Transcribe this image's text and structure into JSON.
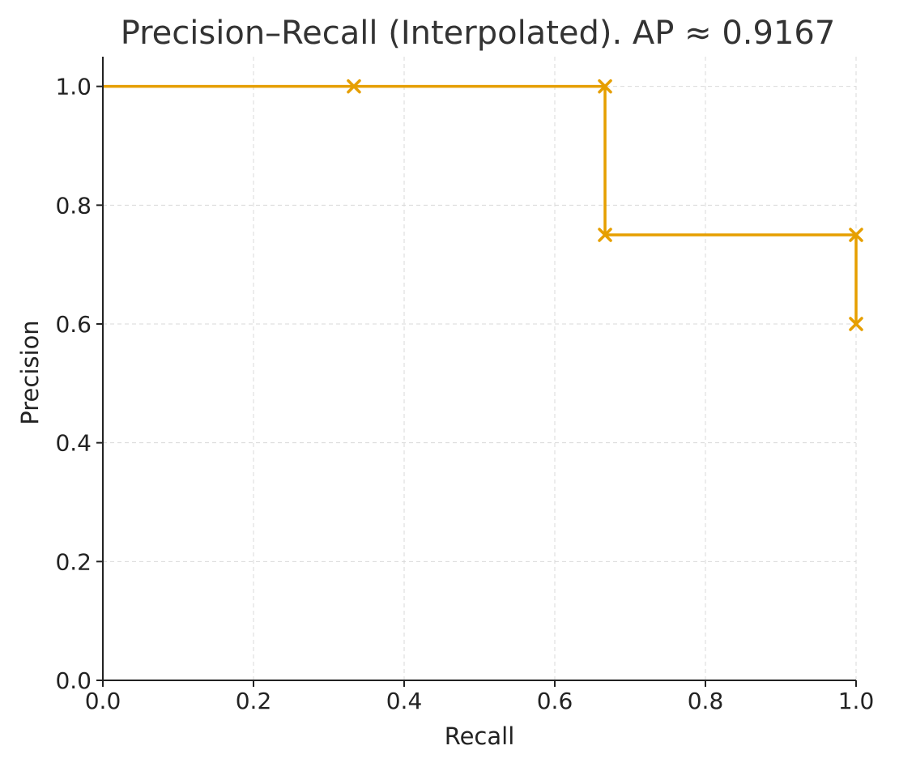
{
  "chart_data": {
    "type": "line",
    "title": "Precision–Recall (Interpolated).  AP ≈ 0.9167",
    "xlabel": "Recall",
    "ylabel": "Precision",
    "xlim": [
      0.0,
      1.0
    ],
    "ylim": [
      0.0,
      1.05
    ],
    "grid": true,
    "color": "#E69F00",
    "x_ticks": [
      0.0,
      0.2,
      0.4,
      0.6,
      0.8,
      1.0
    ],
    "x_tick_labels": [
      "0.0",
      "0.2",
      "0.4",
      "0.6",
      "0.8",
      "1.0"
    ],
    "y_ticks": [
      0.0,
      0.2,
      0.4,
      0.6,
      0.8,
      1.0
    ],
    "y_tick_labels": [
      "0.0",
      "0.2",
      "0.4",
      "0.6",
      "0.8",
      "1.0"
    ],
    "step_line": {
      "x": [
        0.0,
        0.3333,
        0.6667,
        0.6667,
        1.0,
        1.0
      ],
      "y": [
        1.0,
        1.0,
        1.0,
        0.75,
        0.75,
        0.6
      ]
    },
    "markers": {
      "x": [
        0.3333,
        0.6667,
        0.6667,
        1.0,
        1.0
      ],
      "y": [
        1.0,
        1.0,
        0.75,
        0.75,
        0.6
      ]
    }
  }
}
